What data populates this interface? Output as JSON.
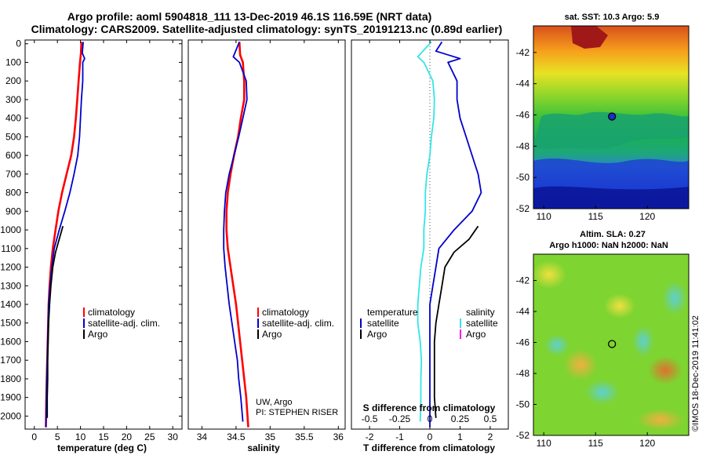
{
  "header": {
    "title_line1": "Argo profile: aoml 5904818_111 13-Dec-2019 46.1S 116.59E (NRT data)",
    "title_line2": "Climatology: CARS2009. Satellite-adjusted climatology: synTS_20191213.nc (0.89d earlier)"
  },
  "colors": {
    "climatology": "#ff0000",
    "satellite": "#0000cc",
    "argo": "#000000",
    "salinity_satellite": "#33e5e5",
    "salinity_argo": "#ff00ff"
  },
  "depth_ticks": [
    "0",
    "100",
    "200",
    "300",
    "400",
    "500",
    "600",
    "700",
    "800",
    "900",
    "1000",
    "1100",
    "1200",
    "1300",
    "1400",
    "1500",
    "1600",
    "1700",
    "1800",
    "1900",
    "2000"
  ],
  "chart_data": [
    {
      "type": "line",
      "id": "temperature",
      "xlabel": "temperature (deg C)",
      "xlim": [
        -2,
        32
      ],
      "ylim": [
        2070,
        -20
      ],
      "x_ticks": [
        0,
        5,
        10,
        15,
        20,
        25,
        30
      ],
      "x_tick_labels": [
        "0",
        "5",
        "10",
        "15",
        "20",
        "25",
        "30"
      ],
      "legend": [
        "climatology",
        "satellite-adj. clim.",
        "Argo"
      ],
      "series": [
        {
          "name": "climatology",
          "color": "#ff0000",
          "points": [
            [
              10.2,
              -10
            ],
            [
              10.1,
              50
            ],
            [
              9.9,
              100
            ],
            [
              9.6,
              200
            ],
            [
              9.3,
              300
            ],
            [
              9.0,
              400
            ],
            [
              8.6,
              500
            ],
            [
              8.0,
              600
            ],
            [
              7.0,
              700
            ],
            [
              6.0,
              800
            ],
            [
              5.2,
              900
            ],
            [
              4.6,
              1000
            ],
            [
              4.0,
              1100
            ],
            [
              3.6,
              1200
            ],
            [
              3.3,
              1300
            ],
            [
              3.1,
              1400
            ],
            [
              3.0,
              1500
            ],
            [
              2.9,
              1600
            ],
            [
              2.8,
              1700
            ],
            [
              2.7,
              1800
            ],
            [
              2.6,
              1900
            ],
            [
              2.5,
              2060
            ]
          ]
        },
        {
          "name": "satellite-adj. clim.",
          "color": "#0000cc",
          "points": [
            [
              10.6,
              -10
            ],
            [
              10.4,
              50
            ],
            [
              10.9,
              80
            ],
            [
              10.5,
              100
            ],
            [
              10.5,
              200
            ],
            [
              10.2,
              300
            ],
            [
              10.0,
              400
            ],
            [
              9.8,
              500
            ],
            [
              9.4,
              600
            ],
            [
              8.6,
              700
            ],
            [
              7.7,
              800
            ],
            [
              6.6,
              900
            ],
            [
              5.4,
              1000
            ],
            [
              4.3,
              1100
            ],
            [
              3.8,
              1200
            ],
            [
              3.4,
              1300
            ],
            [
              3.1,
              1400
            ],
            [
              3.0,
              1500
            ],
            [
              2.9,
              1600
            ],
            [
              2.8,
              1700
            ],
            [
              2.7,
              1800
            ],
            [
              2.6,
              1900
            ],
            [
              2.5,
              2060
            ]
          ]
        },
        {
          "name": "Argo",
          "color": "#000000",
          "points": [
            [
              6.2,
              980
            ],
            [
              5.4,
              1050
            ],
            [
              4.6,
              1120
            ],
            [
              4.0,
              1200
            ],
            [
              3.6,
              1300
            ],
            [
              3.3,
              1400
            ],
            [
              3.1,
              1500
            ],
            [
              3.0,
              1600
            ],
            [
              2.9,
              1700
            ],
            [
              2.9,
              1800
            ],
            [
              2.8,
              1900
            ],
            [
              2.8,
              2010
            ]
          ]
        }
      ]
    },
    {
      "type": "line",
      "id": "salinity",
      "xlabel": "salinity",
      "xlim": [
        33.8,
        36.1
      ],
      "ylim": [
        2070,
        -20
      ],
      "x_ticks": [
        34,
        34.5,
        35,
        35.5,
        36
      ],
      "x_tick_labels": [
        "34",
        "34.5",
        "35",
        "35.5",
        "36"
      ],
      "legend": [
        "climatology",
        "satellite-adj. clim.",
        "Argo"
      ],
      "annotation": [
        "UW, Argo",
        "PI: STEPHEN RISER"
      ],
      "series": [
        {
          "name": "climatology",
          "color": "#ff0000",
          "points": [
            [
              34.55,
              -10
            ],
            [
              34.56,
              60
            ],
            [
              34.6,
              100
            ],
            [
              34.62,
              200
            ],
            [
              34.62,
              300
            ],
            [
              34.57,
              400
            ],
            [
              34.53,
              500
            ],
            [
              34.47,
              600
            ],
            [
              34.42,
              700
            ],
            [
              34.38,
              800
            ],
            [
              34.36,
              900
            ],
            [
              34.36,
              1000
            ],
            [
              34.38,
              1100
            ],
            [
              34.42,
              1200
            ],
            [
              34.46,
              1300
            ],
            [
              34.5,
              1400
            ],
            [
              34.53,
              1500
            ],
            [
              34.56,
              1600
            ],
            [
              34.59,
              1700
            ],
            [
              34.62,
              1800
            ],
            [
              34.65,
              1900
            ],
            [
              34.68,
              2060
            ]
          ]
        },
        {
          "name": "satellite-adj. clim.",
          "color": "#0000cc",
          "points": [
            [
              34.55,
              -10
            ],
            [
              34.46,
              70
            ],
            [
              34.55,
              100
            ],
            [
              34.65,
              200
            ],
            [
              34.66,
              300
            ],
            [
              34.6,
              400
            ],
            [
              34.54,
              500
            ],
            [
              34.47,
              600
            ],
            [
              34.4,
              700
            ],
            [
              34.35,
              800
            ],
            [
              34.33,
              900
            ],
            [
              34.32,
              1000
            ],
            [
              34.32,
              1100
            ],
            [
              34.34,
              1200
            ],
            [
              34.37,
              1300
            ],
            [
              34.4,
              1400
            ],
            [
              34.44,
              1500
            ],
            [
              34.48,
              1600
            ],
            [
              34.52,
              1700
            ],
            [
              34.54,
              1800
            ],
            [
              34.57,
              1900
            ],
            [
              34.6,
              2030
            ]
          ]
        }
      ]
    },
    {
      "type": "line",
      "id": "difference",
      "xlabel": "T difference from climatology",
      "xlabel_top": "S difference from climatology",
      "xlim": [
        -2.6,
        2.6
      ],
      "ylim": [
        2070,
        -20
      ],
      "x_ticks": [
        -2,
        -1,
        0,
        1,
        2
      ],
      "x_tick_labels": [
        "-2",
        "-1",
        "0",
        "1",
        "2"
      ],
      "x_ticks_top": [
        -0.5,
        -0.25,
        0,
        0.25,
        0.5
      ],
      "x_tick_labels_top": [
        "-0.5",
        "-0.25",
        "0",
        "0.25",
        "0.5"
      ],
      "x_top_scale": 0.25,
      "legend_temperature_title": "temperature",
      "legend_temperature": [
        "satellite",
        "Argo"
      ],
      "legend_salinity_title": "salinity",
      "legend_salinity": [
        "satellite",
        "Argo"
      ],
      "series": [
        {
          "name": "temperature satellite",
          "color": "#0000cc",
          "points": [
            [
              0.4,
              -10
            ],
            [
              0.2,
              40
            ],
            [
              1.0,
              80
            ],
            [
              0.6,
              100
            ],
            [
              0.9,
              200
            ],
            [
              0.9,
              300
            ],
            [
              1.0,
              400
            ],
            [
              1.2,
              500
            ],
            [
              1.4,
              600
            ],
            [
              1.6,
              700
            ],
            [
              1.7,
              800
            ],
            [
              1.4,
              900
            ],
            [
              0.8,
              1000
            ],
            [
              0.3,
              1100
            ],
            [
              0.2,
              1200
            ],
            [
              0.1,
              1300
            ],
            [
              0.0,
              1400
            ],
            [
              0.0,
              1500
            ],
            [
              0.0,
              1600
            ],
            [
              0.0,
              1700
            ],
            [
              0.0,
              1800
            ],
            [
              0.0,
              1900
            ],
            [
              0.0,
              2060
            ]
          ]
        },
        {
          "name": "temperature Argo",
          "color": "#000000",
          "points": [
            [
              1.6,
              980
            ],
            [
              1.3,
              1050
            ],
            [
              0.8,
              1120
            ],
            [
              0.5,
              1200
            ],
            [
              0.4,
              1300
            ],
            [
              0.3,
              1400
            ],
            [
              0.2,
              1500
            ],
            [
              0.15,
              1600
            ],
            [
              0.15,
              1700
            ],
            [
              0.15,
              1800
            ],
            [
              0.15,
              1900
            ],
            [
              0.2,
              2010
            ]
          ]
        },
        {
          "name": "salinity satellite",
          "color": "#33e5e5",
          "points": [
            [
              0.05,
              -10
            ],
            [
              -0.4,
              70
            ],
            [
              -0.2,
              100
            ],
            [
              0.1,
              200
            ],
            [
              0.15,
              300
            ],
            [
              0.13,
              400
            ],
            [
              0.05,
              500
            ],
            [
              0.0,
              600
            ],
            [
              -0.1,
              700
            ],
            [
              -0.15,
              800
            ],
            [
              -0.15,
              900
            ],
            [
              -0.2,
              1000
            ],
            [
              -0.2,
              1100
            ],
            [
              -0.3,
              1200
            ],
            [
              -0.35,
              1300
            ],
            [
              -0.4,
              1400
            ],
            [
              -0.4,
              1500
            ],
            [
              -0.32,
              1600
            ],
            [
              -0.28,
              1700
            ],
            [
              -0.3,
              1800
            ],
            [
              -0.3,
              1900
            ],
            [
              -0.32,
              2030
            ]
          ]
        }
      ]
    },
    {
      "type": "heatmap",
      "id": "sst_map",
      "title": "sat. SST: 10.3 Argo: 5.9",
      "xlim": [
        109,
        124
      ],
      "ylim": [
        -52,
        -40.3
      ],
      "x_ticks": [
        110,
        115,
        120
      ],
      "y_ticks": [
        -42,
        -44,
        -46,
        -48,
        -50,
        -52
      ],
      "argo_position": [
        116.59,
        -46.1
      ]
    },
    {
      "type": "heatmap",
      "id": "sla_map",
      "title_line1": "Altim. SLA: 0.27",
      "title_line2": "Argo h1000: NaN h2000: NaN",
      "xlim": [
        109,
        124
      ],
      "ylim": [
        -52,
        -40.3
      ],
      "x_ticks": [
        110,
        115,
        120
      ],
      "y_ticks": [
        -42,
        -44,
        -46,
        -48,
        -50,
        -52
      ],
      "argo_position": [
        116.59,
        -46.1
      ]
    }
  ],
  "footer": {
    "credit": "©IMOS 18-Dec-2019 11:41:02"
  }
}
